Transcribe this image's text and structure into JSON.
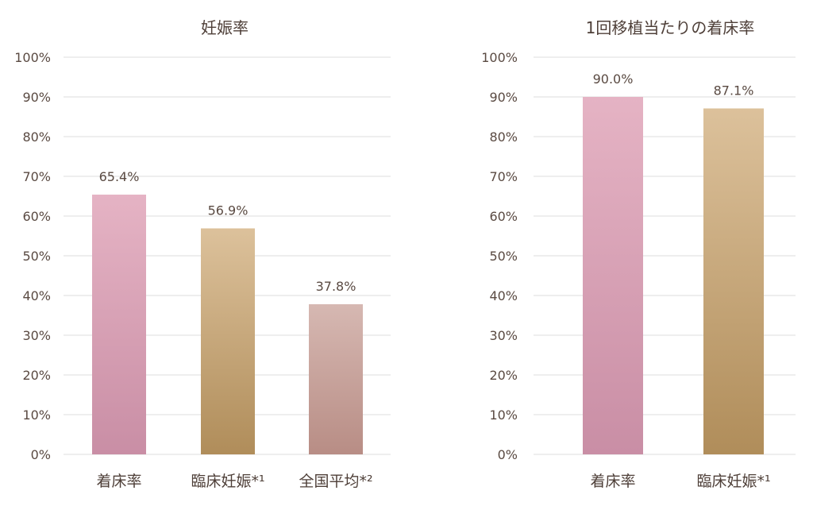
{
  "chart_data": [
    {
      "type": "bar",
      "title": "妊娠率",
      "xlabel": "",
      "ylabel": "",
      "ylim": [
        0,
        100
      ],
      "yticks": [
        "0%",
        "10%",
        "20%",
        "30%",
        "40%",
        "50%",
        "60%",
        "70%",
        "80%",
        "90%",
        "100%"
      ],
      "grid": true,
      "categories": [
        "着床率",
        "臨床妊娠*¹",
        "全国平均*²"
      ],
      "values": [
        65.4,
        56.9,
        37.8
      ],
      "value_labels": [
        "65.4%",
        "56.9%",
        "37.8%"
      ],
      "colors": [
        {
          "top": "#e5b3c4",
          "bottom": "#c98ea5"
        },
        {
          "top": "#dcc19b",
          "bottom": "#b08d5a"
        },
        {
          "top": "#d6b8b2",
          "bottom": "#b88d85"
        }
      ]
    },
    {
      "type": "bar",
      "title": "1回移植当たりの着床率",
      "xlabel": "",
      "ylabel": "",
      "ylim": [
        0,
        100
      ],
      "yticks": [
        "0%",
        "10%",
        "20%",
        "30%",
        "40%",
        "50%",
        "60%",
        "70%",
        "80%",
        "90%",
        "100%"
      ],
      "grid": true,
      "categories": [
        "着床率",
        "臨床妊娠*¹"
      ],
      "values": [
        90.0,
        87.1
      ],
      "value_labels": [
        "90.0%",
        "87.1%"
      ],
      "colors": [
        {
          "top": "#e5b3c4",
          "bottom": "#c98ea5"
        },
        {
          "top": "#dcc19b",
          "bottom": "#b08d5a"
        }
      ]
    }
  ]
}
